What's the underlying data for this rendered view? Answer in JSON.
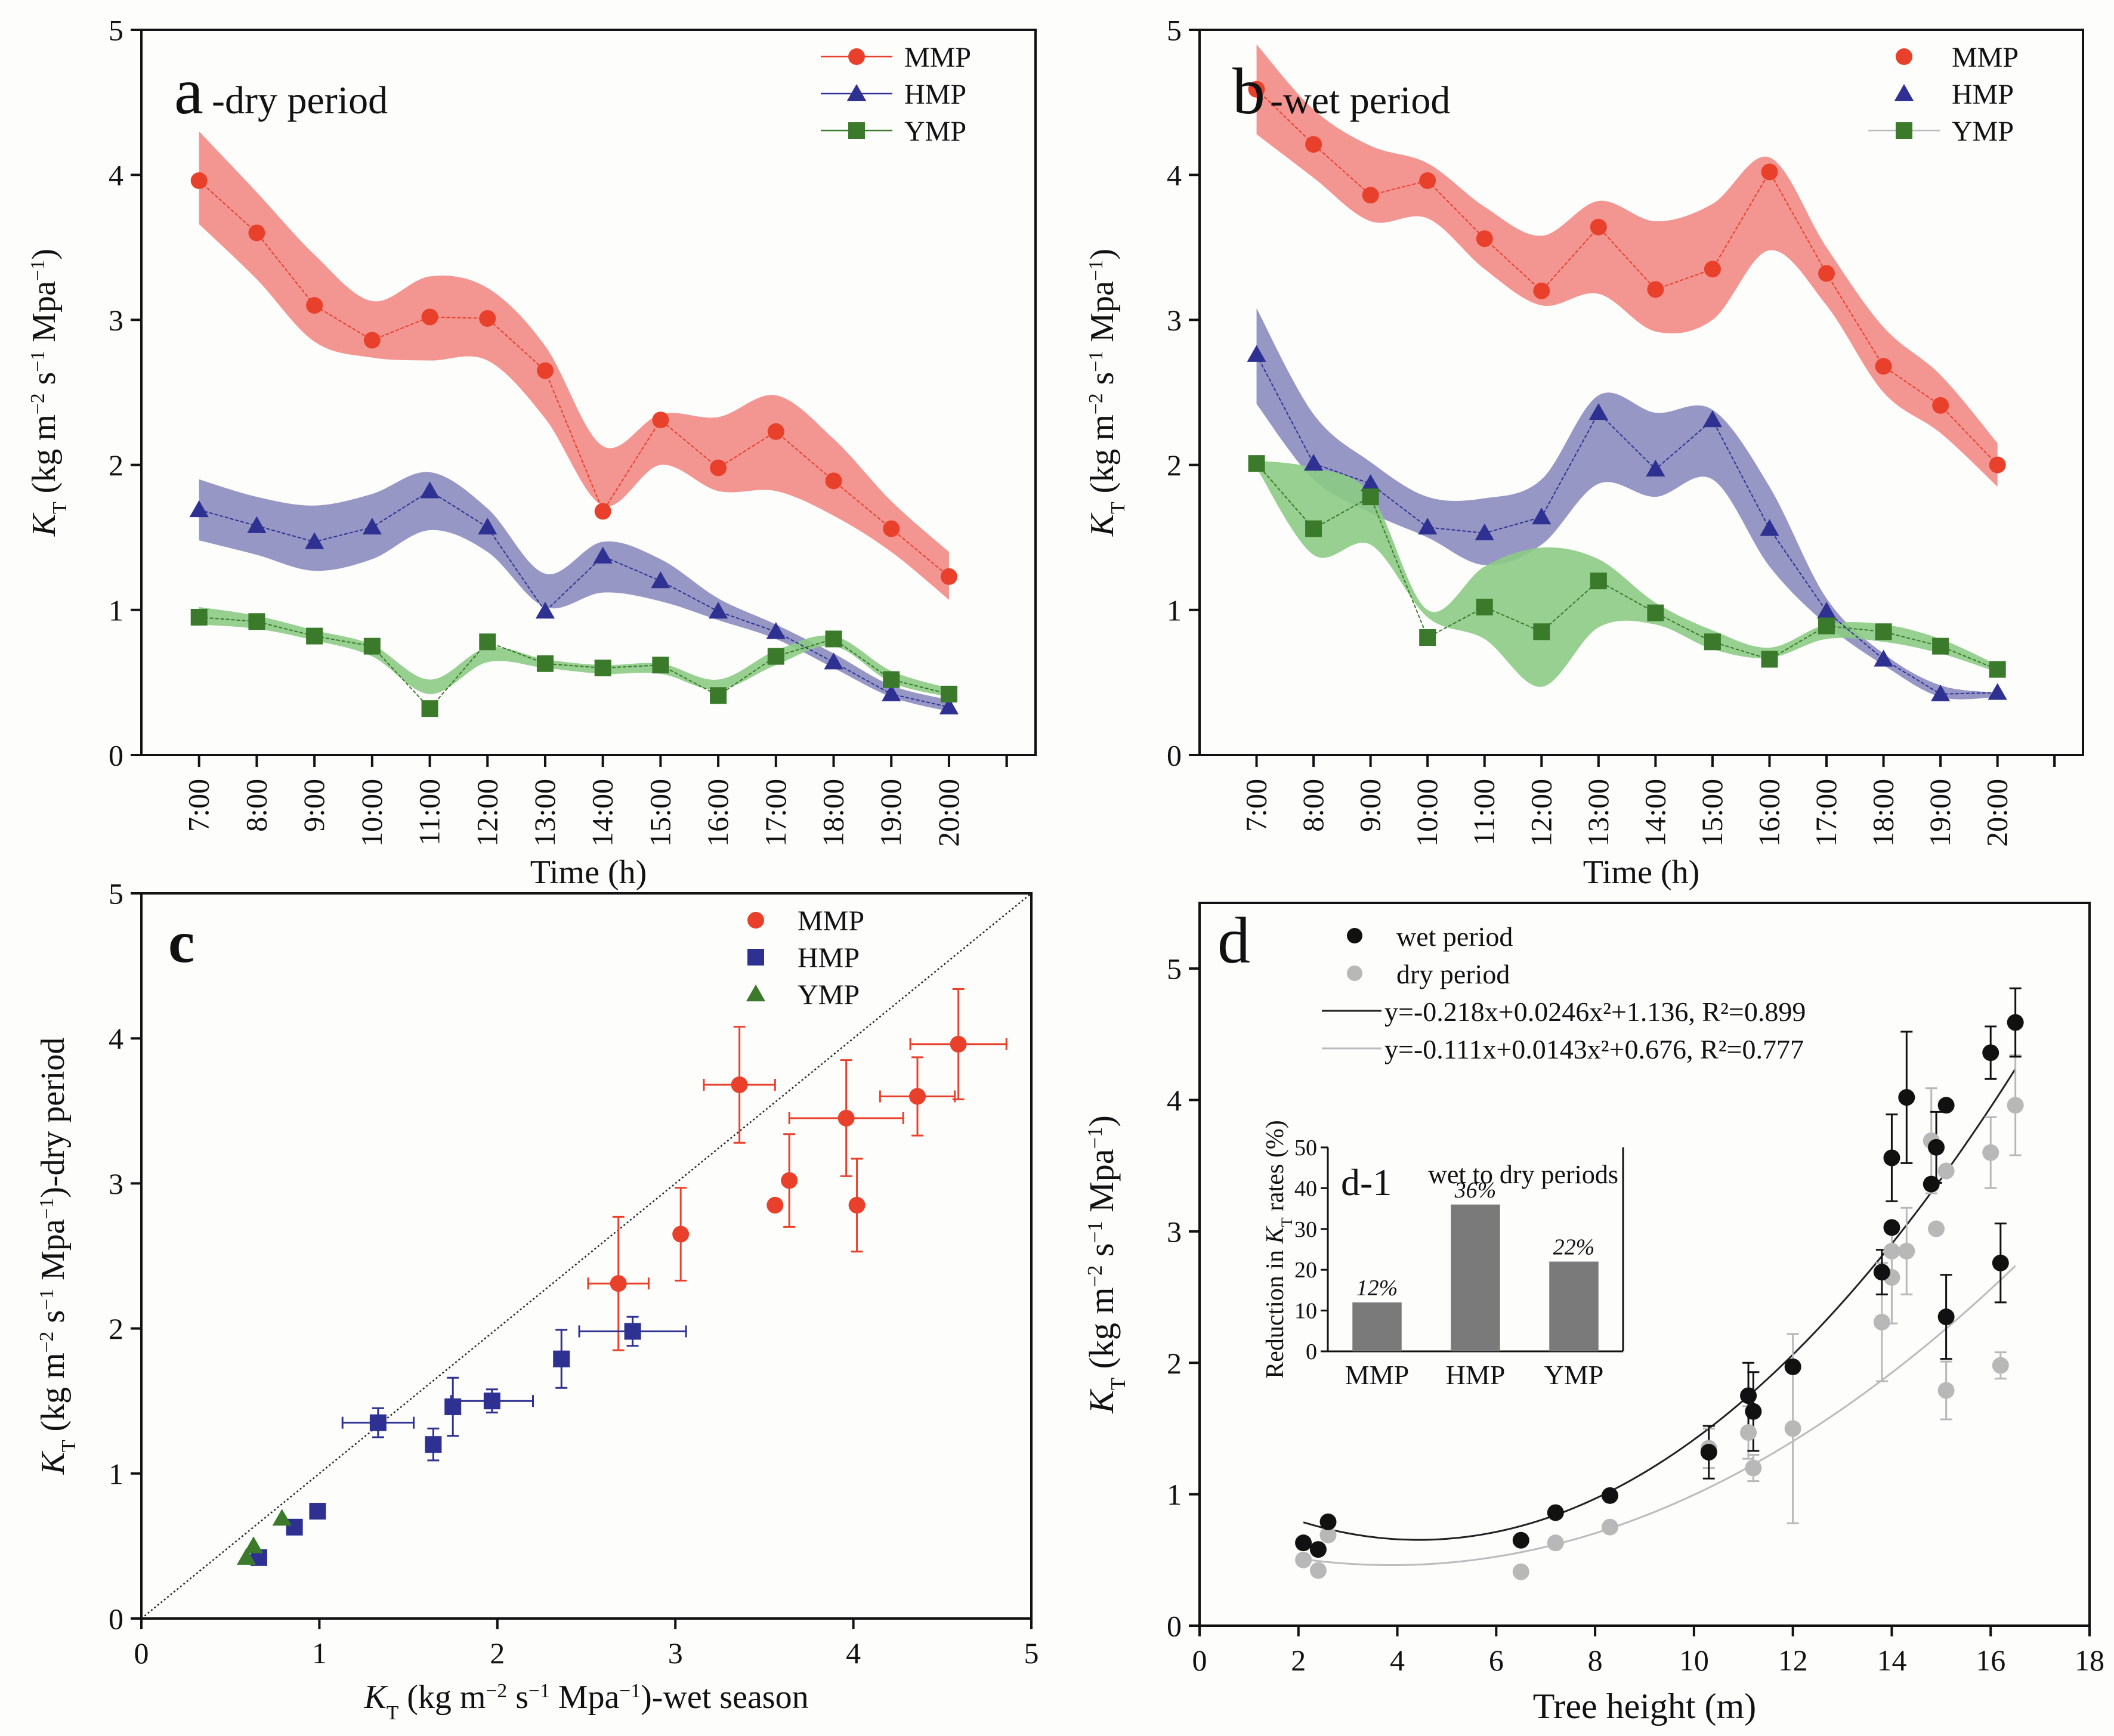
{
  "chart_data": [
    {
      "id": "a",
      "type": "line",
      "panel_label": "a",
      "title": "-dry period",
      "xlabel": "Time (h)",
      "ylabel": "K_T (kg m^-2 s^-1 Mpa^-1)",
      "ylabel_parts": {
        "k": "K",
        "sub": "T",
        "rest1": " (kg m",
        "sup1": "−2",
        "rest2": " s",
        "sup2": "−1",
        "rest3": " Mpa",
        "sup3": "−1",
        "rest4": ")"
      },
      "ylim": [
        0,
        5
      ],
      "yticks": [
        0,
        1,
        2,
        3,
        4,
        5
      ],
      "categories": [
        "7:00",
        "8:00",
        "9:00",
        "10:00",
        "11:00",
        "12:00",
        "13:00",
        "14:00",
        "15:00",
        "16:00",
        "17:00",
        "18:00",
        "19:00",
        "20:00"
      ],
      "legend_position": "top-right",
      "series": [
        {
          "name": "MMP",
          "marker": "circle",
          "color": "#e8402a",
          "band_color": "#f28b86",
          "values": [
            3.96,
            3.6,
            3.1,
            2.86,
            3.02,
            3.01,
            2.65,
            1.68,
            2.31,
            1.98,
            2.23,
            1.89,
            1.56,
            1.23
          ],
          "band_upper": [
            4.3,
            3.88,
            3.45,
            3.13,
            3.3,
            3.22,
            2.82,
            2.13,
            2.35,
            2.33,
            2.48,
            2.18,
            1.75,
            1.4
          ],
          "band_lower": [
            3.66,
            3.28,
            2.85,
            2.74,
            2.72,
            2.72,
            2.32,
            1.72,
            2.0,
            1.82,
            1.82,
            1.65,
            1.4,
            1.07
          ]
        },
        {
          "name": "HMP",
          "marker": "triangle",
          "color": "#2e3192",
          "band_color": "#8b8cbf",
          "values": [
            1.69,
            1.58,
            1.47,
            1.57,
            1.82,
            1.57,
            0.99,
            1.37,
            1.2,
            0.99,
            0.85,
            0.64,
            0.42,
            0.33
          ],
          "band_upper": [
            1.9,
            1.78,
            1.72,
            1.8,
            1.95,
            1.7,
            1.25,
            1.47,
            1.35,
            1.08,
            0.9,
            0.7,
            0.48,
            0.38
          ],
          "band_lower": [
            1.48,
            1.38,
            1.27,
            1.35,
            1.55,
            1.4,
            1.02,
            1.12,
            1.06,
            0.93,
            0.8,
            0.6,
            0.4,
            0.3
          ]
        },
        {
          "name": "YMP",
          "marker": "square",
          "color": "#3a7a2a",
          "band_color": "#8ccb84",
          "values": [
            0.95,
            0.92,
            0.82,
            0.75,
            0.32,
            0.78,
            0.63,
            0.6,
            0.62,
            0.41,
            0.68,
            0.8,
            0.52,
            0.42
          ],
          "band_upper": [
            1.02,
            0.96,
            0.86,
            0.76,
            0.52,
            0.74,
            0.66,
            0.62,
            0.63,
            0.52,
            0.72,
            0.82,
            0.58,
            0.46
          ],
          "band_lower": [
            0.9,
            0.87,
            0.79,
            0.68,
            0.42,
            0.64,
            0.6,
            0.56,
            0.56,
            0.45,
            0.62,
            0.75,
            0.5,
            0.4
          ]
        }
      ]
    },
    {
      "id": "b",
      "type": "line",
      "panel_label": "b",
      "title": "-wet period",
      "xlabel": "Time (h)",
      "ylabel": "K_T (kg m^-2 s^-1 Mpa^-1)",
      "ylabel_parts": {
        "k": "K",
        "sub": "T",
        "rest1": " (kg m",
        "sup1": "−2",
        "rest2": " s",
        "sup2": "−1",
        "rest3": " Mpa",
        "sup3": "−1",
        "rest4": ")"
      },
      "ylim": [
        0,
        5
      ],
      "yticks": [
        0,
        1,
        2,
        3,
        4,
        5
      ],
      "categories": [
        "7:00",
        "8:00",
        "9:00",
        "10:00",
        "11:00",
        "12:00",
        "13:00",
        "14:00",
        "15:00",
        "16:00",
        "17:00",
        "18:00",
        "19:00",
        "20:00"
      ],
      "legend_position": "top-right",
      "series": [
        {
          "name": "MMP",
          "marker": "circle",
          "color": "#e8402a",
          "band_color": "#f28b86",
          "values": [
            4.59,
            4.21,
            3.86,
            3.96,
            3.56,
            3.2,
            3.64,
            3.21,
            3.35,
            4.02,
            3.32,
            2.68,
            2.41,
            2.0
          ],
          "band_upper": [
            4.9,
            4.45,
            4.2,
            4.08,
            3.78,
            3.58,
            3.82,
            3.68,
            3.8,
            4.12,
            3.5,
            2.95,
            2.62,
            2.15
          ],
          "band_lower": [
            4.28,
            3.98,
            3.68,
            3.7,
            3.35,
            3.1,
            3.18,
            2.92,
            3.0,
            3.48,
            3.1,
            2.5,
            2.22,
            1.85
          ]
        },
        {
          "name": "HMP",
          "marker": "triangle",
          "color": "#2e3192",
          "band_color": "#8b8cbf",
          "values": [
            2.76,
            2.01,
            1.87,
            1.57,
            1.53,
            1.64,
            2.36,
            1.97,
            2.31,
            1.56,
            0.99,
            0.66,
            0.42,
            0.43
          ],
          "band_upper": [
            3.08,
            2.35,
            2.02,
            1.78,
            1.77,
            1.9,
            2.48,
            2.36,
            2.38,
            1.85,
            1.08,
            0.7,
            0.48,
            0.43
          ],
          "band_lower": [
            2.42,
            1.9,
            1.67,
            1.5,
            1.31,
            1.45,
            1.87,
            1.78,
            1.9,
            1.3,
            0.9,
            0.62,
            0.4,
            0.4
          ]
        },
        {
          "name": "YMP",
          "marker": "square",
          "color": "#3a7a2a",
          "band_color": "#8ccb84",
          "values": [
            2.01,
            1.56,
            1.78,
            0.81,
            1.02,
            0.85,
            1.2,
            0.98,
            0.78,
            0.66,
            0.89,
            0.85,
            0.75,
            0.59
          ],
          "band_upper": [
            2.03,
            1.98,
            1.8,
            1.0,
            1.3,
            1.43,
            1.35,
            1.05,
            0.86,
            0.74,
            0.9,
            0.9,
            0.8,
            0.62
          ],
          "band_lower": [
            1.98,
            1.38,
            1.45,
            0.95,
            0.8,
            0.47,
            0.88,
            0.9,
            0.73,
            0.67,
            0.8,
            0.78,
            0.7,
            0.57
          ]
        }
      ]
    },
    {
      "id": "c",
      "type": "scatter",
      "panel_label": "c",
      "xlabel": "K_T (kg m^-2 s^-1 Mpa^-1)-wet season",
      "ylabel": "K_T (kg m^-2 s^-1 Mpa^-1)-dry period",
      "xlabel_parts": {
        "k": "K",
        "sub": "T",
        "rest1": " (kg m",
        "sup1": "−2",
        "rest2": " s",
        "sup2": "−1",
        "rest3": " Mpa",
        "sup3": "−1",
        "rest4": ")-wet season"
      },
      "ylabel_parts": {
        "k": "K",
        "sub": "T",
        "rest1": " (kg m",
        "sup1": "−2",
        "rest2": " s",
        "sup2": "−1",
        "rest3": " Mpa",
        "sup3": "−1",
        "rest4": ")-dry period"
      },
      "xlim": [
        0,
        5
      ],
      "ylim": [
        0,
        5
      ],
      "xticks": [
        0,
        1,
        2,
        3,
        4,
        5
      ],
      "yticks": [
        0,
        1,
        2,
        3,
        4,
        5
      ],
      "reference_line": "1:1 dotted",
      "legend_position": "top-right",
      "series": [
        {
          "name": "MMP",
          "marker": "circle",
          "color": "#e8402a",
          "points": [
            {
              "x": 4.59,
              "y": 3.96,
              "xerr": 0.27,
              "yerr": 0.38
            },
            {
              "x": 4.36,
              "y": 3.6,
              "xerr": 0.21,
              "yerr": 0.27
            },
            {
              "x": 3.96,
              "y": 3.45,
              "xerr": 0.32,
              "yerr": 0.4
            },
            {
              "x": 3.36,
              "y": 3.68,
              "xerr": 0.2,
              "yerr": 0.4
            },
            {
              "x": 3.64,
              "y": 3.02,
              "xerr": 0.0,
              "yerr": 0.32
            },
            {
              "x": 3.56,
              "y": 2.85,
              "xerr": 0.0,
              "yerr": 0.0
            },
            {
              "x": 4.02,
              "y": 2.85,
              "xerr": 0.0,
              "yerr": 0.32
            },
            {
              "x": 3.03,
              "y": 2.65,
              "xerr": 0.0,
              "yerr": 0.32
            },
            {
              "x": 2.68,
              "y": 2.31,
              "xerr": 0.17,
              "yerr": 0.46
            }
          ]
        },
        {
          "name": "HMP",
          "marker": "square",
          "color": "#2e3192",
          "points": [
            {
              "x": 2.76,
              "y": 1.98,
              "xerr": 0.3,
              "yerr": 0.1
            },
            {
              "x": 2.36,
              "y": 1.79,
              "xerr": 0.0,
              "yerr": 0.2
            },
            {
              "x": 1.97,
              "y": 1.5,
              "xerr": 0.23,
              "yerr": 0.08
            },
            {
              "x": 1.75,
              "y": 1.46,
              "xerr": 0.0,
              "yerr": 0.2
            },
            {
              "x": 1.33,
              "y": 1.35,
              "xerr": 0.2,
              "yerr": 0.1
            },
            {
              "x": 1.64,
              "y": 1.2,
              "xerr": 0.0,
              "yerr": 0.11
            },
            {
              "x": 0.99,
              "y": 0.74,
              "xerr": 0.0,
              "yerr": 0.0
            },
            {
              "x": 0.86,
              "y": 0.63,
              "xerr": 0.0,
              "yerr": 0.0
            },
            {
              "x": 0.66,
              "y": 0.42,
              "xerr": 0.0,
              "yerr": 0.0
            }
          ]
        },
        {
          "name": "YMP",
          "marker": "triangle",
          "color": "#3a7a2a",
          "points": [
            {
              "x": 0.79,
              "y": 0.69
            },
            {
              "x": 0.63,
              "y": 0.5
            },
            {
              "x": 0.59,
              "y": 0.42
            }
          ]
        }
      ]
    },
    {
      "id": "d",
      "type": "scatter",
      "panel_label": "d",
      "xlabel": "Tree height (m)",
      "ylabel": "K_T (kg m^-2 s^-1 Mpa^-1)",
      "ylabel_parts": {
        "k": "K",
        "sub": "T",
        "rest1": " (kg m",
        "sup1": "−2",
        "rest2": " s",
        "sup2": "−1",
        "rest3": " Mpa",
        "sup3": "−1",
        "rest4": ")"
      },
      "xlim": [
        0,
        18
      ],
      "ylim": [
        0,
        5.5
      ],
      "xticks": [
        0,
        2,
        4,
        6,
        8,
        10,
        12,
        14,
        16,
        18
      ],
      "yticks": [
        0,
        1,
        2,
        3,
        4,
        5
      ],
      "legend_position": "top-left",
      "legend": [
        {
          "label": "wet period",
          "kind": "marker",
          "color": "#111111"
        },
        {
          "label": "dry period",
          "kind": "marker",
          "color": "#b8b8b8"
        },
        {
          "label": "y=-0.218x+0.0246x²+1.136, R²=0.899",
          "kind": "line",
          "color": "#222222"
        },
        {
          "label": "y=-0.111x+0.0143x²+0.676, R²=0.777",
          "kind": "line",
          "color": "#bbbbbb"
        }
      ],
      "fits": [
        {
          "name": "wet fit",
          "a1": -0.218,
          "a2": 0.0246,
          "c": 1.136,
          "r2": 0.899,
          "x_range": [
            2.1,
            16.5
          ],
          "color": "#222222"
        },
        {
          "name": "dry fit",
          "a1": -0.111,
          "a2": 0.0143,
          "c": 0.676,
          "r2": 0.777,
          "x_range": [
            2.1,
            16.5
          ],
          "color": "#bbbbbb"
        }
      ],
      "series": [
        {
          "name": "wet period",
          "color": "#111111",
          "points": [
            {
              "x": 2.1,
              "y": 0.63
            },
            {
              "x": 2.4,
              "y": 0.58
            },
            {
              "x": 2.6,
              "y": 0.79
            },
            {
              "x": 6.5,
              "y": 0.65
            },
            {
              "x": 7.2,
              "y": 0.86
            },
            {
              "x": 8.3,
              "y": 0.99
            },
            {
              "x": 10.3,
              "y": 1.32,
              "yerr": 0.2
            },
            {
              "x": 11.1,
              "y": 1.75,
              "yerr": 0.25
            },
            {
              "x": 11.2,
              "y": 1.63,
              "yerr": 0.3
            },
            {
              "x": 12.0,
              "y": 1.97
            },
            {
              "x": 13.8,
              "y": 2.69,
              "yerr": 0.17
            },
            {
              "x": 14.0,
              "y": 3.56,
              "yerr": 0.33
            },
            {
              "x": 14.0,
              "y": 3.03
            },
            {
              "x": 14.3,
              "y": 4.02,
              "yerr": 0.5
            },
            {
              "x": 14.8,
              "y": 3.36
            },
            {
              "x": 14.9,
              "y": 3.64,
              "yerr": 0.27
            },
            {
              "x": 15.1,
              "y": 3.96
            },
            {
              "x": 15.1,
              "y": 2.35,
              "yerr": 0.32
            },
            {
              "x": 16.0,
              "y": 4.36,
              "yerr": 0.2
            },
            {
              "x": 16.2,
              "y": 2.76,
              "yerr": 0.3
            },
            {
              "x": 16.5,
              "y": 4.59,
              "yerr": 0.26
            }
          ]
        },
        {
          "name": "dry period",
          "color": "#b8b8b8",
          "points": [
            {
              "x": 2.1,
              "y": 0.5
            },
            {
              "x": 2.4,
              "y": 0.42
            },
            {
              "x": 2.6,
              "y": 0.69
            },
            {
              "x": 6.5,
              "y": 0.41
            },
            {
              "x": 7.2,
              "y": 0.63
            },
            {
              "x": 8.3,
              "y": 0.75
            },
            {
              "x": 10.3,
              "y": 1.35,
              "yerr": 0.15
            },
            {
              "x": 11.1,
              "y": 1.47,
              "yerr": 0.2
            },
            {
              "x": 11.2,
              "y": 1.2,
              "yerr": 0.1
            },
            {
              "x": 12.0,
              "y": 1.5,
              "yerr": 0.72
            },
            {
              "x": 13.8,
              "y": 2.31,
              "yerr": 0.45
            },
            {
              "x": 14.0,
              "y": 2.65,
              "yerr": 0.35
            },
            {
              "x": 14.0,
              "y": 2.85
            },
            {
              "x": 14.3,
              "y": 2.85,
              "yerr": 0.33
            },
            {
              "x": 14.8,
              "y": 3.69,
              "yerr": 0.4
            },
            {
              "x": 14.9,
              "y": 3.02
            },
            {
              "x": 15.1,
              "y": 3.46
            },
            {
              "x": 15.1,
              "y": 1.79,
              "yerr": 0.22
            },
            {
              "x": 16.0,
              "y": 3.6,
              "yerr": 0.27
            },
            {
              "x": 16.2,
              "y": 1.98,
              "yerr": 0.1
            },
            {
              "x": 16.5,
              "y": 3.96,
              "yerr": 0.38
            }
          ]
        }
      ],
      "inset": {
        "type": "bar",
        "label": "d-1",
        "title": "wet to dry periods",
        "ylabel": "Reduction in K_T rates (%)",
        "ylabel_parts": {
          "pre": "Reduction in ",
          "k": "K",
          "sub": "T",
          "post": " rates (%)"
        },
        "categories": [
          "MMP",
          "HMP",
          "YMP"
        ],
        "values": [
          12,
          36,
          22
        ],
        "data_labels": [
          "12%",
          "36%",
          "22%"
        ],
        "ylim": [
          0,
          50
        ],
        "yticks": [
          0,
          10,
          20,
          30,
          40,
          50
        ],
        "bar_color": "#7a7a7a"
      }
    }
  ]
}
